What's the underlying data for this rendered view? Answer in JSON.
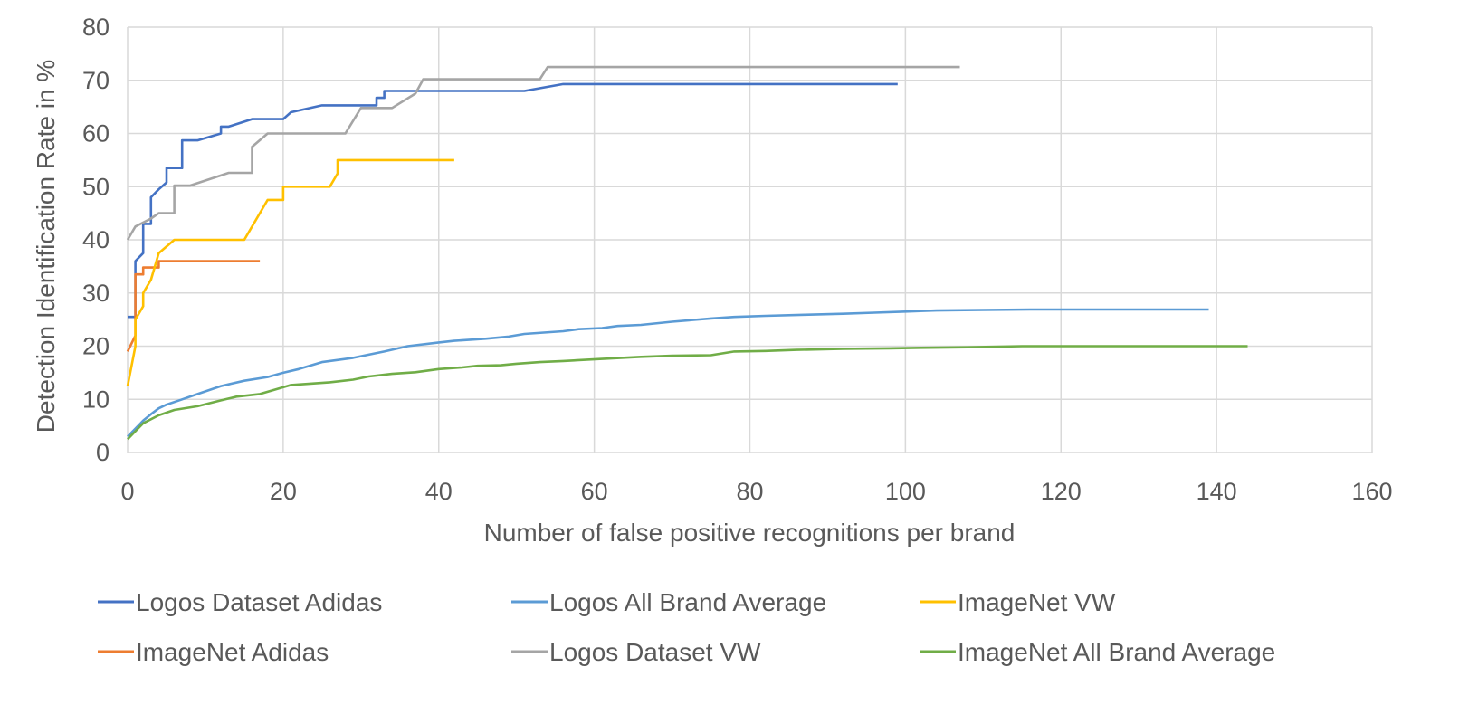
{
  "chart_data": {
    "type": "line",
    "title": "",
    "xlabel": "Number of false positive recognitions per brand",
    "ylabel": "Detection Identification Rate in %",
    "xlim": [
      0,
      160
    ],
    "ylim": [
      0,
      80
    ],
    "xticks": [
      0,
      20,
      40,
      60,
      80,
      100,
      120,
      140,
      160
    ],
    "yticks": [
      0,
      10,
      20,
      30,
      40,
      50,
      60,
      70,
      80
    ],
    "grid": true,
    "legend_position": "bottom",
    "series": [
      {
        "name": "Logos Dataset Adidas",
        "color": "#4472c4",
        "step": true,
        "points": [
          [
            0,
            25.5
          ],
          [
            1,
            25.5
          ],
          [
            1,
            36
          ],
          [
            2,
            37.5
          ],
          [
            2,
            43
          ],
          [
            3,
            43
          ],
          [
            3,
            48
          ],
          [
            4,
            49.5
          ],
          [
            5,
            50.8
          ],
          [
            5,
            53.5
          ],
          [
            7,
            53.5
          ],
          [
            7,
            58.7
          ],
          [
            9,
            58.7
          ],
          [
            12,
            60
          ],
          [
            12,
            61.3
          ],
          [
            13,
            61.3
          ],
          [
            16,
            62.7
          ],
          [
            20,
            62.7
          ],
          [
            21,
            64
          ],
          [
            25,
            65.3
          ],
          [
            32,
            65.3
          ],
          [
            32,
            66.7
          ],
          [
            33,
            66.7
          ],
          [
            33,
            68
          ],
          [
            51,
            68
          ],
          [
            56,
            69.3
          ],
          [
            99,
            69.3
          ]
        ]
      },
      {
        "name": "ImageNet Adidas",
        "color": "#ed7d31",
        "step": true,
        "points": [
          [
            0,
            19
          ],
          [
            1,
            22
          ],
          [
            1,
            33.5
          ],
          [
            2,
            33.5
          ],
          [
            2,
            34.8
          ],
          [
            3,
            34.8
          ],
          [
            4,
            34.8
          ],
          [
            4,
            36
          ],
          [
            17,
            36
          ]
        ]
      },
      {
        "name": "Logos All Brand Average",
        "color": "#5b9bd5",
        "step": false,
        "points": [
          [
            0,
            3
          ],
          [
            1,
            4.5
          ],
          [
            2,
            6
          ],
          [
            3,
            7.2
          ],
          [
            4,
            8.3
          ],
          [
            5,
            9
          ],
          [
            7,
            10
          ],
          [
            9,
            11
          ],
          [
            12,
            12.5
          ],
          [
            15,
            13.5
          ],
          [
            18,
            14.2
          ],
          [
            20,
            15
          ],
          [
            22,
            15.7
          ],
          [
            25,
            17
          ],
          [
            29,
            17.8
          ],
          [
            33,
            19
          ],
          [
            36,
            20
          ],
          [
            40,
            20.7
          ],
          [
            42,
            21
          ],
          [
            46,
            21.4
          ],
          [
            49,
            21.8
          ],
          [
            51,
            22.3
          ],
          [
            56,
            22.8
          ],
          [
            58,
            23.2
          ],
          [
            61,
            23.4
          ],
          [
            63,
            23.8
          ],
          [
            66,
            24
          ],
          [
            70,
            24.6
          ],
          [
            75,
            25.2
          ],
          [
            78,
            25.5
          ],
          [
            82,
            25.7
          ],
          [
            87,
            25.9
          ],
          [
            92,
            26.1
          ],
          [
            96,
            26.3
          ],
          [
            100,
            26.5
          ],
          [
            104,
            26.7
          ],
          [
            110,
            26.8
          ],
          [
            116,
            26.9
          ],
          [
            125,
            26.9
          ],
          [
            139,
            26.9
          ]
        ]
      },
      {
        "name": "Logos Dataset VW",
        "color": "#a5a5a5",
        "step": true,
        "points": [
          [
            0,
            40
          ],
          [
            1,
            42.5
          ],
          [
            3,
            44
          ],
          [
            4,
            45
          ],
          [
            6,
            45
          ],
          [
            6,
            50.2
          ],
          [
            8,
            50.2
          ],
          [
            13,
            52.6
          ],
          [
            16,
            52.6
          ],
          [
            16,
            57.5
          ],
          [
            18,
            60
          ],
          [
            28,
            60
          ],
          [
            30,
            64.8
          ],
          [
            34,
            64.8
          ],
          [
            37,
            67.5
          ],
          [
            38,
            70.2
          ],
          [
            53,
            70.2
          ],
          [
            54,
            72.5
          ],
          [
            107,
            72.5
          ]
        ]
      },
      {
        "name": "ImageNet VW",
        "color": "#ffc000",
        "step": false,
        "points": [
          [
            0,
            12.5
          ],
          [
            1,
            20
          ],
          [
            1,
            25
          ],
          [
            2,
            27.5
          ],
          [
            2,
            30
          ],
          [
            3,
            32.5
          ],
          [
            4,
            37.5
          ],
          [
            6,
            40
          ],
          [
            15,
            40
          ],
          [
            18,
            47.5
          ],
          [
            20,
            47.5
          ],
          [
            20,
            50
          ],
          [
            26,
            50
          ],
          [
            27,
            52.5
          ],
          [
            27,
            55
          ],
          [
            42,
            55
          ]
        ]
      },
      {
        "name": "ImageNet All Brand Average",
        "color": "#70ad47",
        "step": false,
        "points": [
          [
            0,
            2.5
          ],
          [
            1,
            4
          ],
          [
            2,
            5.5
          ],
          [
            4,
            7
          ],
          [
            6,
            8
          ],
          [
            9,
            8.7
          ],
          [
            12,
            9.8
          ],
          [
            14,
            10.5
          ],
          [
            17,
            11
          ],
          [
            21,
            12.7
          ],
          [
            26,
            13.2
          ],
          [
            29,
            13.7
          ],
          [
            31,
            14.3
          ],
          [
            34,
            14.8
          ],
          [
            37,
            15.1
          ],
          [
            40,
            15.7
          ],
          [
            43,
            16
          ],
          [
            45,
            16.3
          ],
          [
            48,
            16.4
          ],
          [
            50,
            16.7
          ],
          [
            53,
            17
          ],
          [
            56,
            17.2
          ],
          [
            61,
            17.6
          ],
          [
            66,
            18
          ],
          [
            70,
            18.2
          ],
          [
            75,
            18.3
          ],
          [
            78,
            19
          ],
          [
            82,
            19.1
          ],
          [
            86,
            19.3
          ],
          [
            92,
            19.5
          ],
          [
            98,
            19.6
          ],
          [
            102,
            19.7
          ],
          [
            108,
            19.8
          ],
          [
            115,
            20
          ],
          [
            125,
            20
          ],
          [
            144,
            20
          ]
        ]
      }
    ]
  }
}
